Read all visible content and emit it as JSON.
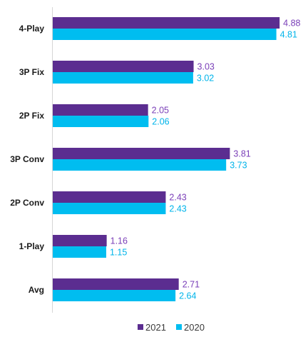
{
  "chart_data": {
    "type": "bar",
    "orientation": "horizontal",
    "categories": [
      "4-Play",
      "3P Fix",
      "2P Fix",
      "3P Conv",
      "2P Conv",
      "1-Play",
      "Avg"
    ],
    "series": [
      {
        "name": "2021",
        "color": "#5b2d90",
        "label_color": "#7a3fb8",
        "values": [
          4.88,
          3.03,
          2.05,
          3.81,
          2.43,
          1.16,
          2.71
        ]
      },
      {
        "name": "2020",
        "color": "#00bdf0",
        "label_color": "#00b4ea",
        "values": [
          4.81,
          3.02,
          2.06,
          3.73,
          2.43,
          1.15,
          2.64
        ]
      }
    ],
    "xlim": [
      0,
      5.5
    ],
    "grid": false,
    "legend": "bottom-center",
    "axis_line_color": "#d6d6d6"
  }
}
